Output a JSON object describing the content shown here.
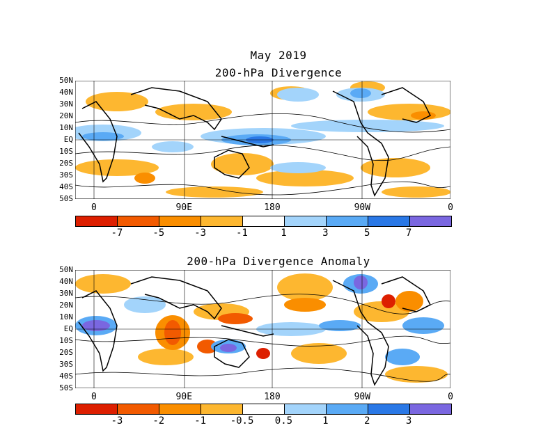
{
  "header": {
    "month": "May 2019"
  },
  "panels": [
    {
      "title": "200-hPa Divergence",
      "lat_labels": [
        "50N",
        "40N",
        "30N",
        "20N",
        "10N",
        "EQ",
        "10S",
        "20S",
        "30S",
        "40S",
        "50S"
      ],
      "lon_labels": [
        "0",
        "90E",
        "180",
        "90W",
        "0"
      ],
      "colorbar": {
        "colors": [
          "#dd1f00",
          "#f25a00",
          "#fa8e00",
          "#fdb730",
          "#ffffff",
          "#a3d4fb",
          "#5aaaf5",
          "#2a78e6",
          "#7a67e0"
        ],
        "ticks": [
          "-7",
          "-5",
          "-3",
          "-1",
          "1",
          "3",
          "5",
          "7"
        ]
      }
    },
    {
      "title": "200-hPa Divergence Anomaly",
      "lat_labels": [
        "50N",
        "40N",
        "30N",
        "20N",
        "10N",
        "EQ",
        "10S",
        "20S",
        "30S",
        "40S",
        "50S"
      ],
      "lon_labels": [
        "0",
        "90E",
        "180",
        "90W",
        "0"
      ],
      "colorbar": {
        "colors": [
          "#dd1f00",
          "#f25a00",
          "#fa8e00",
          "#fdb730",
          "#ffffff",
          "#a3d4fb",
          "#5aaaf5",
          "#2a78e6",
          "#7a67e0"
        ],
        "ticks": [
          "-3",
          "-2",
          "-1",
          "-0.5",
          "0.5",
          "1",
          "2",
          "3"
        ]
      }
    }
  ]
}
